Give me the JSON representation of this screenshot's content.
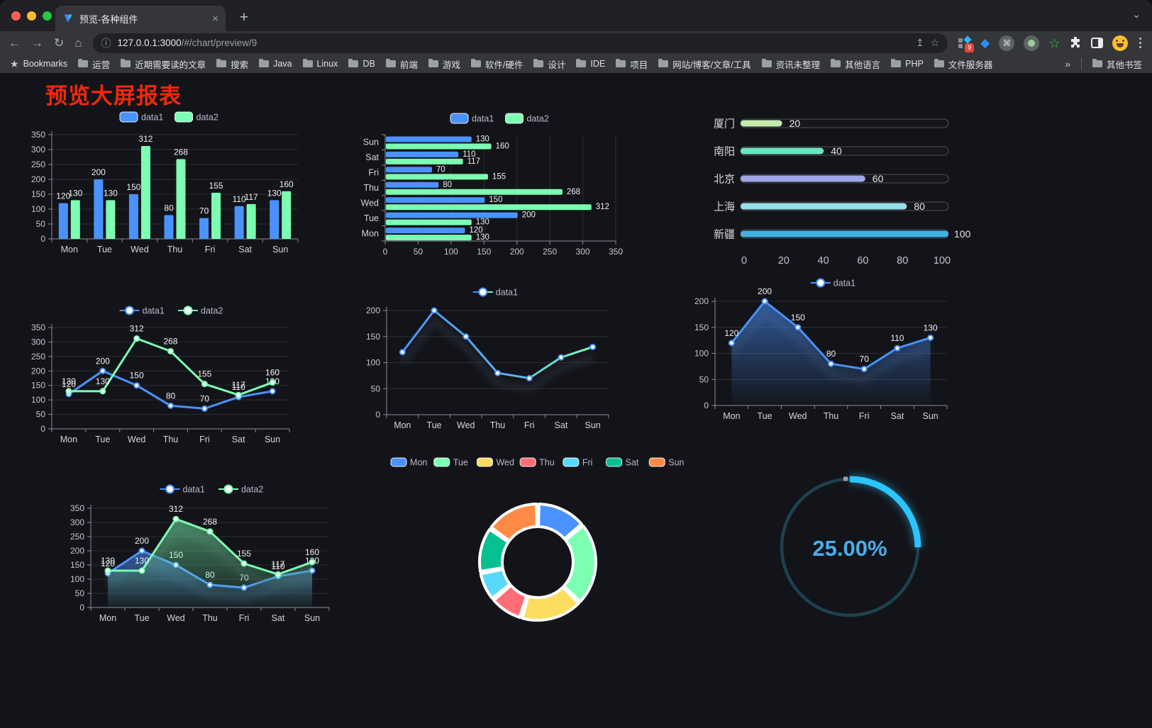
{
  "browser": {
    "tab": {
      "title": "预览-各种组件",
      "close_label": "×",
      "new_tab_label": "+",
      "chevron": "⌄"
    },
    "nav": {
      "back": "←",
      "forward": "→",
      "reload": "↻",
      "home": "⌂"
    },
    "url": {
      "host": "127.0.0.1:3000",
      "path": "/#/chart/preview/9"
    },
    "pill": {
      "info": "ⓘ",
      "share": "↥",
      "star": "☆"
    },
    "extensions": {
      "badge": "9",
      "cmd": "⌘",
      "gem": "◆",
      "green_star": "☆"
    },
    "bookmarks_label": "Bookmarks",
    "bookmarks": [
      "运营",
      "近期需要读的文章",
      "搜索",
      "Java",
      "Linux",
      "DB",
      "前端",
      "游戏",
      "软件/硬件",
      "设计",
      "IDE",
      "项目",
      "网站/博客/文章/工具",
      "资讯未整理",
      "其他语言",
      "PHP",
      "文件服务器"
    ],
    "bookmarks_overflow": "»",
    "other_bookmarks": "其他书签"
  },
  "page": {
    "title": "预览大屏报表"
  },
  "chart_data": [
    {
      "id": "bars",
      "type": "bar",
      "categories": [
        "Mon",
        "Tue",
        "Wed",
        "Thu",
        "Fri",
        "Sat",
        "Sun"
      ],
      "series": [
        {
          "name": "data1",
          "color": "#4992ff",
          "values": [
            120,
            200,
            150,
            80,
            70,
            110,
            130
          ]
        },
        {
          "name": "data2",
          "color": "#7cffb2",
          "values": [
            130,
            130,
            312,
            268,
            155,
            117,
            160
          ]
        }
      ],
      "ylim": [
        0,
        350
      ],
      "yticks": [
        0,
        50,
        100,
        150,
        200,
        250,
        300,
        350
      ],
      "legend_position": "top",
      "grid": true,
      "point_labels": true
    },
    {
      "id": "hbars",
      "type": "bar-horizontal",
      "categories": [
        "Mon",
        "Tue",
        "Wed",
        "Thu",
        "Fri",
        "Sat",
        "Sun"
      ],
      "series": [
        {
          "name": "data1",
          "color": "#4992ff",
          "values": [
            120,
            200,
            150,
            80,
            70,
            110,
            130
          ]
        },
        {
          "name": "data2",
          "color": "#7cffb2",
          "values": [
            130,
            130,
            312,
            268,
            155,
            117,
            160
          ]
        }
      ],
      "xlim": [
        0,
        350
      ],
      "xticks": [
        0,
        50,
        100,
        150,
        200,
        250,
        300,
        350
      ],
      "legend_position": "top",
      "grid": true,
      "point_labels": true
    },
    {
      "id": "caps",
      "type": "bar-capsule",
      "categories": [
        "厦门",
        "南阳",
        "北京",
        "上海",
        "新疆"
      ],
      "values": [
        20,
        40,
        60,
        80,
        100
      ],
      "colors": [
        "#c4ebad",
        "#6be6c1",
        "#a0a7e6",
        "#96dee8",
        "#3fb1e3"
      ],
      "xlim": [
        0,
        100
      ],
      "xticks": [
        0,
        20,
        40,
        60,
        80,
        100
      ]
    },
    {
      "id": "lines2",
      "type": "line",
      "categories": [
        "Mon",
        "Tue",
        "Wed",
        "Thu",
        "Fri",
        "Sat",
        "Sun"
      ],
      "series": [
        {
          "name": "data1",
          "color": "#4992ff",
          "values": [
            120,
            200,
            150,
            80,
            70,
            110,
            130
          ]
        },
        {
          "name": "data2",
          "color": "#7cffb2",
          "values": [
            130,
            130,
            312,
            268,
            155,
            117,
            160
          ]
        }
      ],
      "ylim": [
        0,
        350
      ],
      "yticks": [
        0,
        50,
        100,
        150,
        200,
        250,
        300,
        350
      ],
      "legend_position": "top",
      "point_labels": true
    },
    {
      "id": "lineGrad",
      "type": "line",
      "categories": [
        "Mon",
        "Tue",
        "Wed",
        "Thu",
        "Fri",
        "Sat",
        "Sun"
      ],
      "series": [
        {
          "name": "data1",
          "color": "#4992ff",
          "gradient": [
            "#4992ff",
            "#7cffb2"
          ],
          "values": [
            120,
            200,
            150,
            80,
            70,
            110,
            130
          ]
        }
      ],
      "ylim": [
        0,
        200
      ],
      "yticks": [
        0,
        50,
        100,
        150,
        200
      ],
      "legend_position": "top",
      "point_labels": false,
      "shadow": true
    },
    {
      "id": "area1",
      "type": "area",
      "categories": [
        "Mon",
        "Tue",
        "Wed",
        "Thu",
        "Fri",
        "Sat",
        "Sun"
      ],
      "series": [
        {
          "name": "data1",
          "color": "#4992ff",
          "area": "blue",
          "values": [
            120,
            200,
            150,
            80,
            70,
            110,
            130
          ]
        }
      ],
      "ylim": [
        0,
        200
      ],
      "yticks": [
        0,
        50,
        100,
        150,
        200
      ],
      "legend_position": "top",
      "point_labels": true,
      "shadow": true
    },
    {
      "id": "area2",
      "type": "area",
      "categories": [
        "Mon",
        "Tue",
        "Wed",
        "Thu",
        "Fri",
        "Sat",
        "Sun"
      ],
      "series": [
        {
          "name": "data1",
          "color": "#4992ff",
          "area": "blue",
          "values": [
            120,
            200,
            150,
            80,
            70,
            110,
            130
          ]
        },
        {
          "name": "data2",
          "color": "#7cffb2",
          "area": "green",
          "values": [
            130,
            130,
            312,
            268,
            155,
            117,
            160
          ]
        }
      ],
      "ylim": [
        0,
        350
      ],
      "yticks": [
        0,
        50,
        100,
        150,
        200,
        250,
        300,
        350
      ],
      "legend_position": "top",
      "point_labels": true,
      "shadow": true
    },
    {
      "id": "donut",
      "type": "pie",
      "categories": [
        "Mon",
        "Tue",
        "Wed",
        "Thu",
        "Fri",
        "Sat",
        "Sun"
      ],
      "values": [
        120,
        200,
        150,
        80,
        70,
        110,
        130
      ],
      "colors": [
        "#4992ff",
        "#7cffb2",
        "#fddd60",
        "#ff6e76",
        "#58d9f9",
        "#05c091",
        "#ff8a45"
      ],
      "legend_position": "top",
      "inner_radius_ratio": 0.61
    },
    {
      "id": "gauge",
      "type": "gauge",
      "percent": 25,
      "value_label": "25.00%",
      "color": "#2bc4ff",
      "track_color": "#1d4150",
      "text_color": "#47aeea"
    }
  ]
}
